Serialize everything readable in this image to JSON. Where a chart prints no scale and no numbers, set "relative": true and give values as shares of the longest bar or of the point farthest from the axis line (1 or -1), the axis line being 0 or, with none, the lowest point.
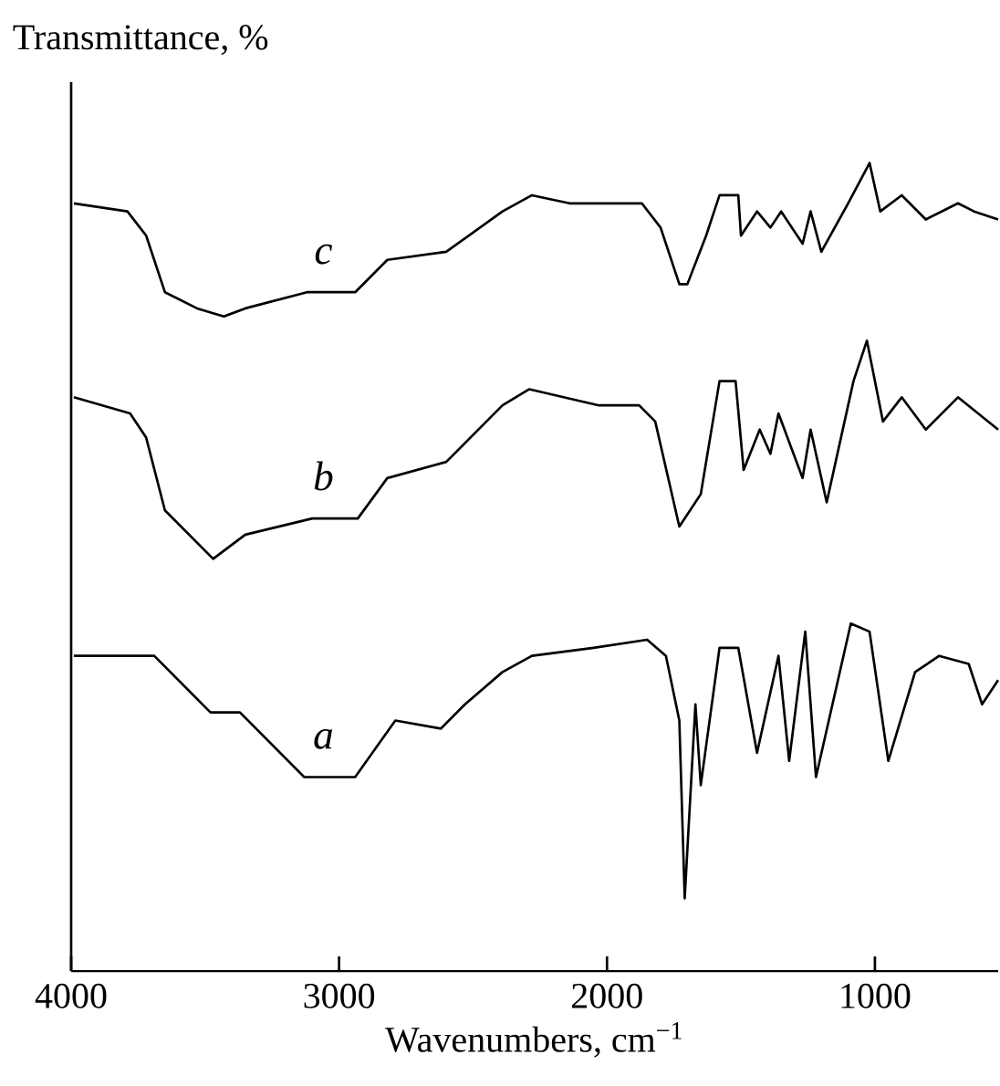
{
  "chart_data": {
    "type": "line",
    "relative": true,
    "xlabel": "Wavenumbers, cm$^{−1}$",
    "ylabel": "Transmittance, %",
    "xlim": [
      4000,
      540
    ],
    "xticks": [
      4000,
      3000,
      2000,
      1000
    ],
    "series": [
      {
        "name": "a",
        "color": "#000000",
        "x": [
          3990,
          3780,
          3690,
          3480,
          3370,
          3130,
          2940,
          2790,
          2620,
          2530,
          2390,
          2280,
          2050,
          1850,
          1780,
          1730,
          1710,
          1670,
          1650,
          1580,
          1510,
          1440,
          1360,
          1320,
          1260,
          1220,
          1090,
          1020,
          950,
          850,
          760,
          650,
          600,
          540
        ],
        "values": [
          0.39,
          0.39,
          0.39,
          0.32,
          0.32,
          0.24,
          0.24,
          0.31,
          0.3,
          0.33,
          0.37,
          0.39,
          0.4,
          0.41,
          0.39,
          0.31,
          0.09,
          0.33,
          0.23,
          0.4,
          0.4,
          0.27,
          0.39,
          0.26,
          0.42,
          0.24,
          0.43,
          0.42,
          0.26,
          0.37,
          0.39,
          0.38,
          0.33,
          0.36
        ]
      },
      {
        "name": "b",
        "color": "#000000",
        "x": [
          3990,
          3780,
          3720,
          3650,
          3470,
          3350,
          3100,
          2930,
          2820,
          2600,
          2390,
          2290,
          2030,
          1880,
          1820,
          1730,
          1650,
          1580,
          1520,
          1490,
          1430,
          1390,
          1360,
          1270,
          1240,
          1180,
          1080,
          1030,
          970,
          900,
          810,
          690,
          540
        ],
        "values": [
          0.71,
          0.69,
          0.66,
          0.57,
          0.51,
          0.54,
          0.56,
          0.56,
          0.61,
          0.63,
          0.7,
          0.72,
          0.7,
          0.7,
          0.68,
          0.55,
          0.59,
          0.73,
          0.73,
          0.62,
          0.67,
          0.64,
          0.69,
          0.61,
          0.67,
          0.58,
          0.73,
          0.78,
          0.68,
          0.71,
          0.67,
          0.71,
          0.67
        ]
      },
      {
        "name": "c",
        "color": "#000000",
        "x": [
          3990,
          3790,
          3720,
          3650,
          3530,
          3430,
          3350,
          3120,
          2940,
          2820,
          2600,
          2390,
          2280,
          2140,
          1870,
          1800,
          1730,
          1700,
          1630,
          1580,
          1510,
          1500,
          1440,
          1390,
          1350,
          1270,
          1240,
          1200,
          1100,
          1020,
          980,
          900,
          810,
          690,
          630,
          540
        ],
        "values": [
          0.95,
          0.94,
          0.91,
          0.84,
          0.82,
          0.81,
          0.82,
          0.84,
          0.84,
          0.88,
          0.89,
          0.94,
          0.96,
          0.95,
          0.95,
          0.92,
          0.85,
          0.85,
          0.91,
          0.96,
          0.96,
          0.91,
          0.94,
          0.92,
          0.94,
          0.9,
          0.94,
          0.89,
          0.95,
          1.0,
          0.94,
          0.96,
          0.93,
          0.95,
          0.94,
          0.93
        ]
      }
    ]
  }
}
